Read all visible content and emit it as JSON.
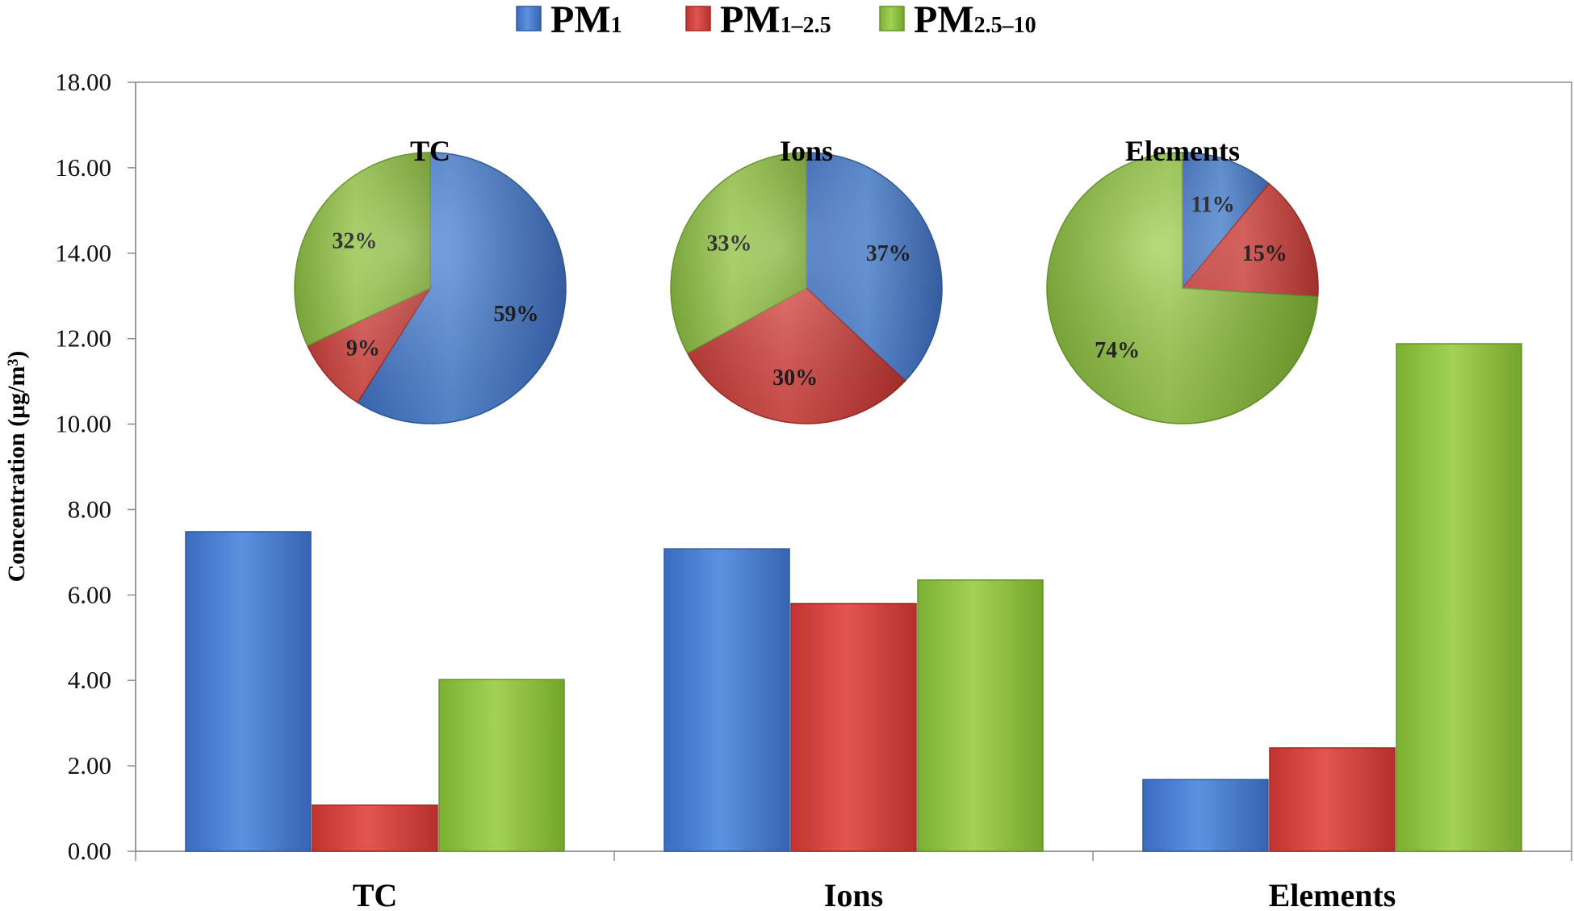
{
  "chart_data": [
    {
      "type": "bar",
      "categories": [
        "TC",
        "Ions",
        "Elements"
      ],
      "series": [
        {
          "name": "PM1",
          "name_main": "PM",
          "name_sub": "1",
          "color": "#4a7fd0",
          "values": [
            7.48,
            7.08,
            1.68
          ]
        },
        {
          "name": "PM1–2.5",
          "name_main": "PM",
          "name_sub": "1–2.5",
          "color": "#d23f3b",
          "values": [
            1.08,
            5.8,
            2.42
          ]
        },
        {
          "name": "PM2.5–10",
          "name_main": "PM",
          "name_sub": "2.5–10",
          "color": "#8fc23f",
          "values": [
            4.02,
            6.35,
            11.88
          ]
        }
      ],
      "ylabel": "Concentration (μg/m³)",
      "ylim": [
        0,
        18
      ],
      "yticks": [
        "0.00",
        "2.00",
        "4.00",
        "6.00",
        "8.00",
        "10.00",
        "12.00",
        "14.00",
        "16.00",
        "18.00"
      ],
      "legend_position": "top",
      "grid": false
    },
    {
      "type": "pie",
      "title": "TC",
      "slices": [
        {
          "series": "PM1",
          "value": 59,
          "label": "59%"
        },
        {
          "series": "PM1–2.5",
          "value": 9,
          "label": "9%"
        },
        {
          "series": "PM2.5–10",
          "value": 32,
          "label": "32%"
        }
      ]
    },
    {
      "type": "pie",
      "title": "Ions",
      "slices": [
        {
          "series": "PM1",
          "value": 37,
          "label": "37%"
        },
        {
          "series": "PM1–2.5",
          "value": 30,
          "label": "30%"
        },
        {
          "series": "PM2.5–10",
          "value": 33,
          "label": "33%"
        }
      ]
    },
    {
      "type": "pie",
      "title": "Elements",
      "slices": [
        {
          "series": "PM1",
          "value": 11,
          "label": "11%"
        },
        {
          "series": "PM1–2.5",
          "value": 15,
          "label": "15%"
        },
        {
          "series": "PM2.5–10",
          "value": 74,
          "label": "74%"
        }
      ]
    }
  ]
}
